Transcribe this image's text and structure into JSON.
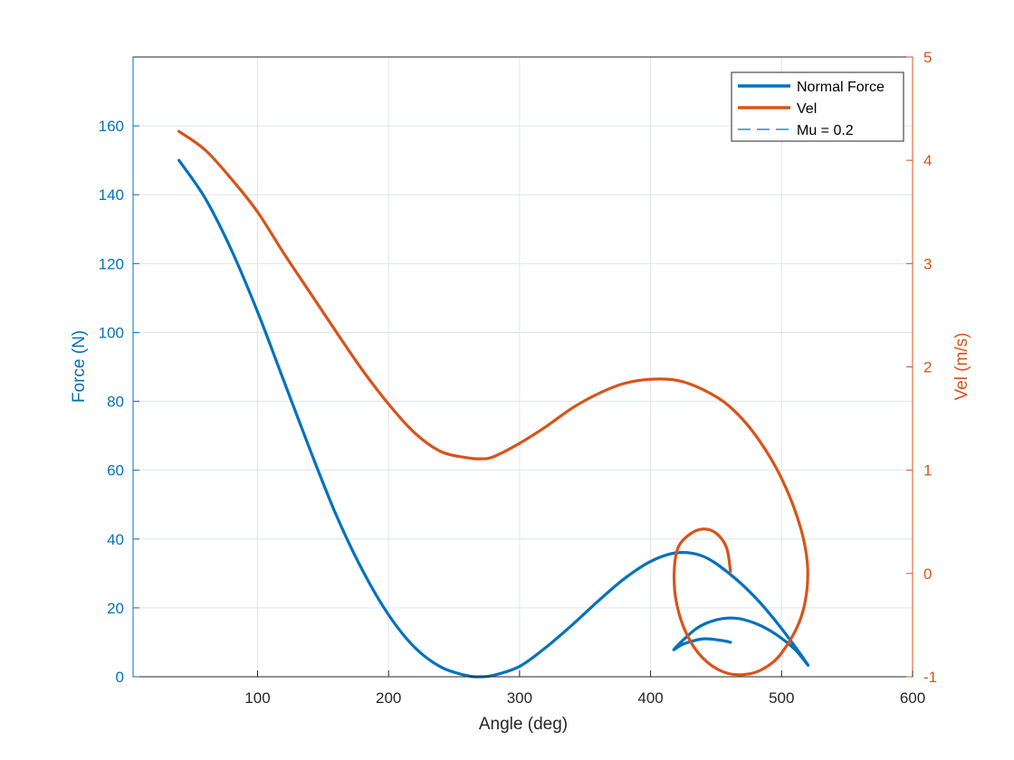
{
  "colors": {
    "force": "#0072BD",
    "vel": "#D95319",
    "axis": "#262626",
    "grid": "#dfe6ec"
  },
  "chart_data": {
    "type": "line",
    "xlabel": "Angle (deg)",
    "ylabel_left": "Force (N)",
    "ylabel_right": "Vel (m/s)",
    "xlim": [
      5,
      600
    ],
    "ylim_left": [
      0,
      180
    ],
    "ylim_right": [
      -1,
      5
    ],
    "x_ticks": [
      "100",
      "200",
      "300",
      "400",
      "500",
      "600"
    ],
    "y_left_ticks": [
      "0",
      "20",
      "40",
      "60",
      "80",
      "100",
      "120",
      "140",
      "160"
    ],
    "y_right_ticks": [
      "-1",
      "0",
      "1",
      "2",
      "3",
      "4",
      "5"
    ],
    "grid": true,
    "legend_position": "top-right",
    "legend": [
      {
        "label": "Normal Force",
        "style": "solid"
      },
      {
        "label": "Vel",
        "style": "solid"
      },
      {
        "label": "Mu = 0.2",
        "style": "dashed"
      }
    ],
    "series": [
      {
        "name": "Normal Force",
        "axis": "left",
        "points": [
          [
            40,
            150
          ],
          [
            60,
            139
          ],
          [
            80,
            124
          ],
          [
            100,
            106
          ],
          [
            120,
            86
          ],
          [
            140,
            66
          ],
          [
            160,
            47
          ],
          [
            180,
            31
          ],
          [
            200,
            18
          ],
          [
            220,
            8.5
          ],
          [
            240,
            2.8
          ],
          [
            260,
            0.3
          ],
          [
            270,
            0
          ],
          [
            280,
            0.4
          ],
          [
            300,
            3
          ],
          [
            320,
            8.5
          ],
          [
            340,
            15
          ],
          [
            360,
            22
          ],
          [
            380,
            28.5
          ],
          [
            400,
            33.5
          ],
          [
            420,
            36
          ],
          [
            440,
            35
          ],
          [
            460,
            30
          ],
          [
            480,
            23
          ],
          [
            500,
            14
          ],
          [
            520,
            3.5
          ],
          [
            510,
            8
          ],
          [
            495,
            12.5
          ],
          [
            480,
            15.5
          ],
          [
            465,
            17
          ],
          [
            450,
            16.5
          ],
          [
            435,
            14
          ],
          [
            418,
            8
          ],
          [
            425,
            9.5
          ],
          [
            440,
            11
          ],
          [
            455,
            10.5
          ],
          [
            461,
            10
          ]
        ]
      },
      {
        "name": "Vel",
        "axis": "right",
        "points": [
          [
            40,
            4.28
          ],
          [
            60,
            4.1
          ],
          [
            80,
            3.82
          ],
          [
            100,
            3.5
          ],
          [
            120,
            3.1
          ],
          [
            140,
            2.72
          ],
          [
            160,
            2.34
          ],
          [
            180,
            1.97
          ],
          [
            200,
            1.64
          ],
          [
            220,
            1.36
          ],
          [
            240,
            1.18
          ],
          [
            260,
            1.12
          ],
          [
            270,
            1.11
          ],
          [
            280,
            1.13
          ],
          [
            300,
            1.26
          ],
          [
            320,
            1.42
          ],
          [
            340,
            1.6
          ],
          [
            360,
            1.74
          ],
          [
            380,
            1.84
          ],
          [
            400,
            1.88
          ],
          [
            420,
            1.87
          ],
          [
            440,
            1.78
          ],
          [
            460,
            1.62
          ],
          [
            480,
            1.34
          ],
          [
            500,
            0.92
          ],
          [
            515,
            0.42
          ],
          [
            520,
            0.0
          ],
          [
            515,
            -0.42
          ],
          [
            500,
            -0.77
          ],
          [
            485,
            -0.93
          ],
          [
            470,
            -0.98
          ],
          [
            455,
            -0.95
          ],
          [
            440,
            -0.82
          ],
          [
            428,
            -0.6
          ],
          [
            420,
            -0.3
          ],
          [
            418,
            0.0
          ],
          [
            421,
            0.25
          ],
          [
            430,
            0.38
          ],
          [
            440,
            0.43
          ],
          [
            450,
            0.39
          ],
          [
            458,
            0.25
          ],
          [
            461,
            0.02
          ]
        ]
      }
    ]
  }
}
